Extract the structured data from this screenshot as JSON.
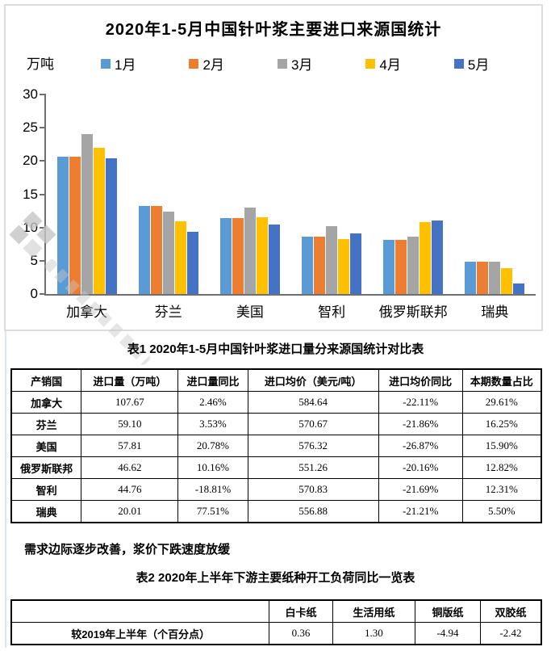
{
  "chart_data": {
    "type": "bar",
    "title": "2020年1-5月中国针叶浆主要进口来源国统计",
    "unit": "万吨",
    "categories": [
      "加拿大",
      "芬兰",
      "美国",
      "智利",
      "俄罗斯联邦",
      "瑞典"
    ],
    "series": [
      {
        "name": "1月",
        "color": "#5B9BD5",
        "values": [
          20.6,
          13.3,
          11.4,
          8.6,
          8.1,
          4.9
        ]
      },
      {
        "name": "2月",
        "color": "#ED7D31",
        "values": [
          20.6,
          13.3,
          11.4,
          8.6,
          8.1,
          4.9
        ]
      },
      {
        "name": "3月",
        "color": "#A5A5A5",
        "values": [
          24.1,
          12.4,
          13.0,
          10.2,
          8.6,
          4.9
        ]
      },
      {
        "name": "4月",
        "color": "#FFC000",
        "values": [
          22.0,
          10.9,
          11.6,
          8.3,
          10.8,
          3.9
        ]
      },
      {
        "name": "5月",
        "color": "#4472C4",
        "values": [
          20.4,
          9.4,
          10.5,
          9.1,
          11.0,
          1.6
        ]
      }
    ],
    "ylim": [
      0,
      30
    ],
    "y_ticks": [
      0,
      5,
      10,
      15,
      20,
      25,
      30
    ],
    "grid": false,
    "legend_position": "top"
  },
  "table1": {
    "caption": "表1  2020年1-5月中国针叶浆进口量分来源国统计对比表",
    "headers": [
      "产销国",
      "进口量（万吨）",
      "进口量同比",
      "进口均价（美元/吨）",
      "进口均价同比",
      "本期数量占比"
    ],
    "col_widths_pct": [
      13.2,
      18.3,
      13.1,
      24.7,
      15.8,
      14.9
    ],
    "rows": [
      [
        "加拿大",
        "107.67",
        "2.46%",
        "584.64",
        "-22.11%",
        "29.61%"
      ],
      [
        "芬兰",
        "59.10",
        "3.53%",
        "570.67",
        "-21.86%",
        "16.25%"
      ],
      [
        "美国",
        "57.81",
        "20.78%",
        "576.32",
        "-26.87%",
        "15.90%"
      ],
      [
        "俄罗斯联邦",
        "46.62",
        "10.16%",
        "551.26",
        "-20.16%",
        "12.82%"
      ],
      [
        "智利",
        "44.76",
        "-18.81%",
        "570.83",
        "-21.69%",
        "12.31%"
      ],
      [
        "瑞典",
        "20.01",
        "77.51%",
        "556.88",
        "-21.21%",
        "5.50%"
      ]
    ]
  },
  "note": {
    "text": "需求边际逐步改善，浆价下跌速度放缓"
  },
  "table2": {
    "caption": "表2  2020年上半年下游主要纸种开工负荷同比一览表",
    "headers": [
      "",
      "白卡纸",
      "生活用纸",
      "铜版纸",
      "双胶纸"
    ],
    "col_widths_pct": [
      48.7,
      11.9,
      15.6,
      12.3,
      11.5
    ],
    "rows": [
      [
        "较2019年上半年（个百分点）",
        "0.36",
        "1.30",
        "-4.94",
        "-2.42"
      ]
    ]
  },
  "colors": {
    "axis": "#6f6f6f",
    "panel_border": "#dcdcdc",
    "table_border": "#000000",
    "watermark": "#c4c4c4"
  }
}
